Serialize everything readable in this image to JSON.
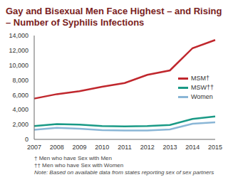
{
  "chart_data": {
    "type": "line",
    "title": "Gay and Bisexual Men Face Highest – and Rising – Number of Syphilis Infections",
    "categories": [
      "2007",
      "2008",
      "2009",
      "2010",
      "2011",
      "2012",
      "2013",
      "2014",
      "2015"
    ],
    "series": [
      {
        "name": "MSM†",
        "color": "#c0272d",
        "values": [
          5500,
          6100,
          6500,
          7100,
          7600,
          8700,
          9300,
          12300,
          13400
        ]
      },
      {
        "name": "MSW††",
        "color": "#1a9a86",
        "values": [
          1800,
          2050,
          2000,
          1800,
          1750,
          1800,
          1950,
          2750,
          3100
        ]
      },
      {
        "name": "Women",
        "color": "#8ab6d6",
        "values": [
          1300,
          1550,
          1450,
          1250,
          1200,
          1200,
          1350,
          2100,
          2300
        ]
      }
    ],
    "ylim": [
      0,
      14000
    ],
    "yticks": [
      0,
      {
        "value": 2000,
        "label": "2,000"
      },
      {
        "value": 4000,
        "label": "4,000"
      },
      {
        "value": 6000,
        "label": "6,000"
      },
      {
        "value": 8000,
        "label": "8,000"
      },
      {
        "value": 10000,
        "label": "10,000"
      },
      {
        "value": 12000,
        "label": "12,000"
      },
      {
        "value": 14000,
        "label": "14,000"
      }
    ],
    "grid": false,
    "legend": "right",
    "annotations": [
      "† Men who have Sex with Men",
      "†† Men who have Sex with Women",
      "Note: Based on available data from states reporting sex of sex partners"
    ]
  }
}
